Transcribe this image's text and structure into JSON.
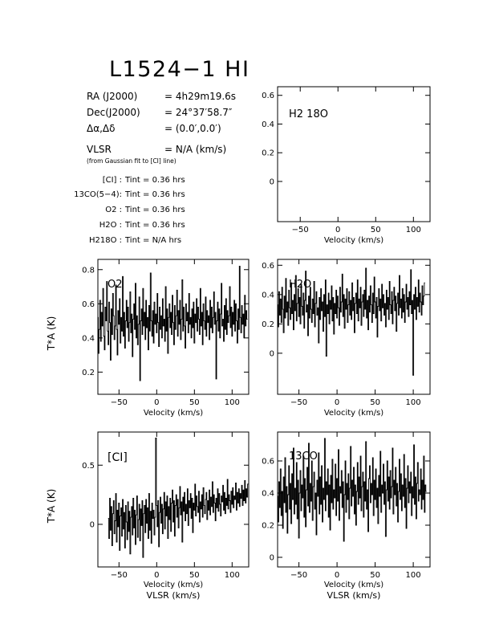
{
  "header": {
    "title": "L1524−1 HI",
    "info": [
      {
        "label": "RA (J2000)",
        "value": "= 4h29m19.6s"
      },
      {
        "label": "Dec(J2000)",
        "value": "= 24°37′58.7″"
      },
      {
        "label": "Δα,Δδ",
        "value": "= (0.0′,0.0′)"
      },
      {
        "label": "VLSR",
        "value": "= N/A  (km/s)"
      }
    ],
    "fit_note": "(from Gaussian fit to [CI] line)",
    "integration_times": [
      {
        "label": "[CI] :",
        "value": "Tint = 0.36 hrs"
      },
      {
        "label": "13CO(5−4):",
        "value": "Tint = 0.36 hrs"
      },
      {
        "label": "O2 :",
        "value": "Tint = 0.36 hrs"
      },
      {
        "label": "H2O :",
        "value": "Tint = 0.36 hrs"
      },
      {
        "label": "H218O :",
        "value": "Tint = N/A  hrs"
      }
    ]
  },
  "chart_data": [
    {
      "type": "line",
      "id": "h218o",
      "panel_label": "H2 18O",
      "xlabel": "Velocity (km/s)",
      "ylabel": "",
      "x_axis_extra_label": "",
      "xlim": [
        -80,
        122
      ],
      "ylim": [
        -0.28,
        0.66
      ],
      "xticks": [
        -50,
        0,
        50,
        100
      ],
      "yticks": [
        0,
        0.2,
        0.4,
        0.6
      ],
      "x": [],
      "y": []
    },
    {
      "type": "line",
      "id": "o2",
      "panel_label": "O2",
      "xlabel": "Velocity (km/s)",
      "ylabel": "T*A (K)",
      "x_axis_extra_label": "",
      "xlim": [
        -78,
        122
      ],
      "ylim": [
        0.07,
        0.86
      ],
      "xticks": [
        -50,
        0,
        50,
        100
      ],
      "yticks": [
        0.2,
        0.4,
        0.6,
        0.8
      ],
      "x_start": -78,
      "x_step": 1,
      "y": [
        0.52,
        0.31,
        0.45,
        0.62,
        0.38,
        0.55,
        0.47,
        0.69,
        0.41,
        0.33,
        0.58,
        0.5,
        0.73,
        0.44,
        0.36,
        0.61,
        0.49,
        0.27,
        0.57,
        0.42,
        0.66,
        0.53,
        0.39,
        0.47,
        0.71,
        0.45,
        0.3,
        0.56,
        0.48,
        0.63,
        0.37,
        0.52,
        0.44,
        0.76,
        0.41,
        0.55,
        0.34,
        0.5,
        0.62,
        0.46,
        0.58,
        0.38,
        0.49,
        0.67,
        0.43,
        0.54,
        0.29,
        0.51,
        0.6,
        0.45,
        0.72,
        0.4,
        0.53,
        0.36,
        0.48,
        0.64,
        0.15,
        0.5,
        0.57,
        0.42,
        0.69,
        0.47,
        0.55,
        0.39,
        0.62,
        0.46,
        0.52,
        0.33,
        0.59,
        0.44,
        0.78,
        0.5,
        0.41,
        0.56,
        0.37,
        0.61,
        0.48,
        0.54,
        0.43,
        0.66,
        0.49,
        0.35,
        0.58,
        0.45,
        0.53,
        0.4,
        0.63,
        0.47,
        0.51,
        0.38,
        0.7,
        0.44,
        0.57,
        0.31,
        0.52,
        0.6,
        0.46,
        0.55,
        0.42,
        0.65,
        0.49,
        0.36,
        0.59,
        0.45,
        0.53,
        0.68,
        0.41,
        0.56,
        0.48,
        0.62,
        0.39,
        0.51,
        0.74,
        0.44,
        0.58,
        0.47,
        0.34,
        0.6,
        0.5,
        0.55,
        0.43,
        0.66,
        0.48,
        0.52,
        0.4,
        0.57,
        0.46,
        0.61,
        0.37,
        0.54,
        0.49,
        0.63,
        0.44,
        0.58,
        0.51,
        0.42,
        0.69,
        0.47,
        0.55,
        0.36,
        0.6,
        0.5,
        0.45,
        0.64,
        0.41,
        0.56,
        0.49,
        0.53,
        0.39,
        0.62,
        0.46,
        0.58,
        0.43,
        0.52,
        0.67,
        0.48,
        0.55,
        0.16,
        0.5,
        0.61,
        0.44,
        0.57,
        0.4,
        0.54,
        0.72,
        0.47,
        0.51,
        0.38,
        0.59,
        0.45,
        0.63,
        0.42,
        0.56,
        0.49,
        0.53,
        0.7,
        0.46,
        0.58,
        0.41,
        0.55,
        0.48,
        0.62,
        0.44,
        0.6,
        0.5,
        0.37,
        0.57,
        0.45,
        0.82,
        0.52,
        0.43,
        0.59,
        0.48,
        0.54,
        0.4,
        0.65,
        0.47,
        0.56,
        0.51
      ]
    },
    {
      "type": "line",
      "id": "h2o",
      "panel_label": "H2O",
      "xlabel": "Velocity (km/s)",
      "ylabel": "",
      "x_axis_extra_label": "",
      "xlim": [
        -78,
        122
      ],
      "ylim": [
        -0.28,
        0.64
      ],
      "xticks": [
        -50,
        0,
        50,
        100
      ],
      "yticks": [
        0,
        0.2,
        0.4,
        0.6
      ],
      "x_start": -78,
      "x_step": 1,
      "y": [
        0.33,
        0.18,
        0.42,
        0.26,
        0.37,
        0.21,
        0.45,
        0.3,
        0.14,
        0.39,
        0.24,
        0.51,
        0.28,
        0.35,
        0.19,
        0.43,
        0.31,
        0.23,
        0.48,
        0.27,
        0.36,
        0.16,
        0.4,
        0.29,
        0.53,
        0.22,
        0.34,
        0.44,
        0.25,
        0.38,
        0.2,
        0.47,
        0.32,
        0.26,
        0.41,
        0.17,
        0.36,
        0.56,
        0.28,
        0.33,
        0.12,
        0.39,
        0.24,
        0.45,
        0.3,
        0.21,
        0.37,
        0.27,
        0.49,
        0.18,
        0.34,
        0.42,
        0.26,
        0.31,
        0.07,
        0.38,
        0.23,
        0.44,
        0.29,
        0.35,
        0.15,
        0.4,
        0.25,
        0.5,
        -0.02,
        0.33,
        0.27,
        0.41,
        0.2,
        0.36,
        0.3,
        0.46,
        0.22,
        0.38,
        0.13,
        0.34,
        0.27,
        0.43,
        0.24,
        0.39,
        0.31,
        0.19,
        0.45,
        0.28,
        0.35,
        0.54,
        0.25,
        0.4,
        0.17,
        0.37,
        0.3,
        0.44,
        0.21,
        0.33,
        0.42,
        0.26,
        0.36,
        0.23,
        0.48,
        0.29,
        0.38,
        0.14,
        0.34,
        0.41,
        0.27,
        0.5,
        0.22,
        0.37,
        0.31,
        0.45,
        0.19,
        0.35,
        0.4,
        0.25,
        0.43,
        0.3,
        0.58,
        0.24,
        0.36,
        0.16,
        0.39,
        0.28,
        0.46,
        0.33,
        0.21,
        0.41,
        0.27,
        0.52,
        0.35,
        0.24,
        0.38,
        0.11,
        0.32,
        0.44,
        0.29,
        0.37,
        0.22,
        0.47,
        0.31,
        0.4,
        0.26,
        0.34,
        0.18,
        0.43,
        0.3,
        0.38,
        0.23,
        0.49,
        0.33,
        0.27,
        0.42,
        0.2,
        0.36,
        0.45,
        0.29,
        0.39,
        0.15,
        0.34,
        0.41,
        0.26,
        0.53,
        0.31,
        0.37,
        0.24,
        0.44,
        0.28,
        0.4,
        0.21,
        0.35,
        0.47,
        0.3,
        0.38,
        0.25,
        0.42,
        0.33,
        0.57,
        0.27,
        0.36,
        -0.15,
        0.4,
        0.3,
        0.45,
        0.23,
        0.38,
        0.32,
        0.5,
        0.28,
        0.41,
        0.35,
        0.26,
        0.46,
        0.33,
        0.39,
        0.48
      ]
    },
    {
      "type": "line",
      "id": "ci",
      "panel_label": "[CI]",
      "xlabel": "Velocity (km/s)",
      "ylabel": "T*A (K)",
      "x_axis_extra_label": "VLSR (km/s)",
      "xlim": [
        -78,
        122
      ],
      "ylim": [
        -0.36,
        0.78
      ],
      "xticks": [
        -50,
        0,
        50,
        100
      ],
      "yticks": [
        0,
        0.5
      ],
      "x_start": -64,
      "x_step": 1,
      "y": [
        0.05,
        -0.12,
        0.22,
        -0.05,
        0.15,
        -0.18,
        0.09,
        0.2,
        -0.08,
        0.03,
        0.26,
        -0.15,
        0.12,
        -0.02,
        0.18,
        -0.22,
        0.07,
        0.14,
        -0.1,
        0.21,
        -0.04,
        0.1,
        -0.2,
        0.16,
        0.02,
        -0.13,
        0.19,
        -0.06,
        0.11,
        -0.25,
        0.06,
        0.15,
        -0.09,
        0.22,
        -0.03,
        0.12,
        -0.17,
        0.08,
        0.24,
        -0.11,
        0.04,
        0.17,
        -0.14,
        0.13,
        -0.01,
        0.2,
        -0.28,
        0.09,
        0.16,
        -0.07,
        0.21,
        0.01,
        0.14,
        -0.12,
        0.26,
        -0.05,
        0.11,
        -0.16,
        0.18,
        0.05,
        0.12,
        -0.09,
        0.06,
        0.73,
        0.16,
        -0.02,
        0.2,
        -0.19,
        0.1,
        0.23,
        0.01,
        0.17,
        -0.08,
        0.13,
        0.27,
        -0.04,
        0.19,
        0.07,
        0.24,
        -0.12,
        0.15,
        0.04,
        0.22,
        -0.06,
        0.18,
        0.29,
        0.02,
        0.2,
        -0.1,
        0.16,
        0.25,
        0.06,
        0.21,
        -0.03,
        0.14,
        0.32,
        0.08,
        0.19,
        -0.15,
        0.23,
        0.11,
        0.27,
        0.03,
        0.17,
        0.09,
        0.3,
        -0.01,
        0.2,
        0.14,
        0.26,
        0.05,
        0.22,
        -0.07,
        0.18,
        0.12,
        0.34,
        0.07,
        0.24,
        0.15,
        0.1,
        0.28,
        0.02,
        0.19,
        0.13,
        0.25,
        0.06,
        0.31,
        0.16,
        0.09,
        0.21,
        0.27,
        0.04,
        0.2,
        0.12,
        0.29,
        0.08,
        0.23,
        0.15,
        0.36,
        0.1,
        0.25,
        0.18,
        0.03,
        0.22,
        0.14,
        0.3,
        0.11,
        0.26,
        0.17,
        0.07,
        0.24,
        0.19,
        0.33,
        0.12,
        0.27,
        0.09,
        0.22,
        0.16,
        0.38,
        0.13,
        0.25,
        0.2,
        0.1,
        0.28,
        0.17,
        0.31,
        0.14,
        0.24,
        0.21,
        0.35,
        0.12,
        0.27,
        0.18,
        0.3,
        0.15,
        0.26,
        0.22,
        0.33,
        0.16,
        0.29,
        0.2,
        0.37,
        0.18,
        0.3,
        0.23,
        0.34
      ]
    },
    {
      "type": "line",
      "id": "co13",
      "panel_label": "13CO",
      "xlabel": "Velocity (km/s)",
      "ylabel": "",
      "x_axis_extra_label": "VLSR (km/s)",
      "xlim": [
        -78,
        122
      ],
      "ylim": [
        -0.06,
        0.78
      ],
      "xticks": [
        -50,
        0,
        50,
        100
      ],
      "yticks": [
        0,
        0.2,
        0.4,
        0.6
      ],
      "x_start": -78,
      "x_step": 1,
      "y": [
        0.38,
        0.22,
        0.47,
        0.31,
        0.55,
        0.26,
        0.41,
        0.18,
        0.5,
        0.34,
        0.62,
        0.28,
        0.44,
        0.15,
        0.39,
        0.57,
        0.3,
        0.46,
        0.21,
        0.52,
        0.36,
        0.68,
        0.27,
        0.43,
        0.33,
        0.59,
        0.24,
        0.48,
        0.12,
        0.4,
        0.54,
        0.29,
        0.45,
        0.37,
        0.63,
        0.25,
        0.49,
        0.19,
        0.42,
        0.56,
        0.32,
        0.71,
        0.28,
        0.46,
        0.35,
        0.6,
        0.23,
        0.44,
        0.53,
        0.3,
        0.4,
        0.14,
        0.48,
        0.38,
        0.65,
        0.27,
        0.5,
        0.33,
        0.57,
        0.22,
        0.43,
        0.36,
        0.74,
        0.29,
        0.47,
        0.39,
        0.55,
        0.25,
        0.45,
        0.17,
        0.51,
        0.34,
        0.61,
        0.3,
        0.42,
        0.37,
        0.58,
        0.26,
        0.49,
        0.35,
        0.67,
        0.23,
        0.44,
        0.4,
        0.54,
        0.31,
        0.47,
        0.1,
        0.39,
        0.6,
        0.28,
        0.46,
        0.36,
        0.52,
        0.24,
        0.43,
        0.69,
        0.32,
        0.48,
        0.38,
        0.56,
        0.27,
        0.45,
        0.2,
        0.41,
        0.59,
        0.33,
        0.5,
        0.37,
        0.63,
        0.29,
        0.44,
        0.53,
        0.25,
        0.47,
        0.35,
        0.72,
        0.3,
        0.42,
        0.16,
        0.49,
        0.57,
        0.34,
        0.46,
        0.39,
        0.62,
        0.26,
        0.48,
        0.36,
        0.55,
        0.31,
        0.43,
        0.21,
        0.51,
        0.38,
        0.66,
        0.28,
        0.45,
        0.4,
        0.58,
        0.33,
        0.47,
        0.13,
        0.42,
        0.6,
        0.35,
        0.5,
        0.3,
        0.54,
        0.37,
        0.44,
        0.68,
        0.27,
        0.48,
        0.39,
        0.56,
        0.32,
        0.46,
        0.22,
        0.41,
        0.61,
        0.36,
        0.52,
        0.29,
        0.45,
        0.38,
        0.64,
        0.31,
        0.49,
        0.18,
        0.43,
        0.57,
        0.34,
        0.47,
        0.4,
        0.53,
        0.26,
        0.44,
        0.37,
        0.7,
        0.33,
        0.5,
        0.24,
        0.46,
        0.59,
        0.35,
        0.42,
        0.39,
        0.55,
        0.3,
        0.48,
        0.36,
        0.63,
        0.28,
        0.45,
        0.41
      ]
    }
  ]
}
